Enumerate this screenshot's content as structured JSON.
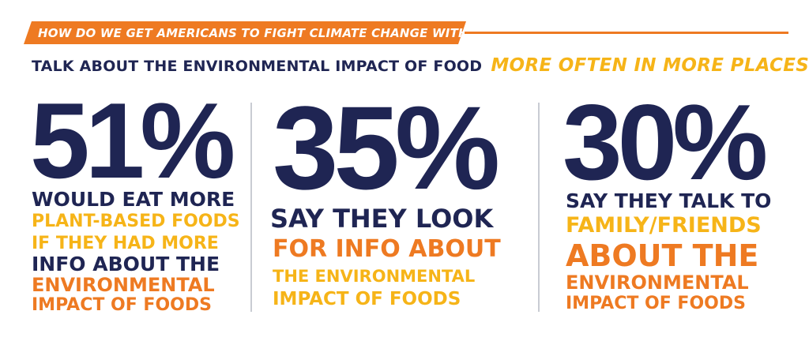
{
  "header": {
    "question": "HOW DO WE GET AMERICANS TO FIGHT CLIMATE CHANGE WITH DIET?",
    "headline_main": "TALK ABOUT THE ENVIRONMENTAL IMPACT OF FOOD",
    "headline_accent": "MORE OFTEN IN MORE PLACES"
  },
  "stats": [
    {
      "value": "51%",
      "lines": [
        "WOULD EAT MORE",
        "PLANT-BASED FOODS",
        "IF THEY HAD MORE",
        "INFO ABOUT THE",
        "ENVIRONMENTAL",
        "IMPACT OF FOODS"
      ]
    },
    {
      "value": "35%",
      "lines": [
        "SAY THEY LOOK",
        "FOR INFO ABOUT",
        "THE ENVIRONMENTAL",
        "IMPACT OF FOODS"
      ]
    },
    {
      "value": "30%",
      "lines": [
        "SAY THEY TALK TO",
        "FAMILY/FRIENDS",
        "ABOUT THE",
        "ENVIRONMENTAL",
        "IMPACT OF FOODS"
      ]
    }
  ],
  "colors": {
    "navy": "#1f2553",
    "orange": "#ee7a22",
    "yellow": "#f6b418",
    "divider": "#c9ccd3"
  }
}
